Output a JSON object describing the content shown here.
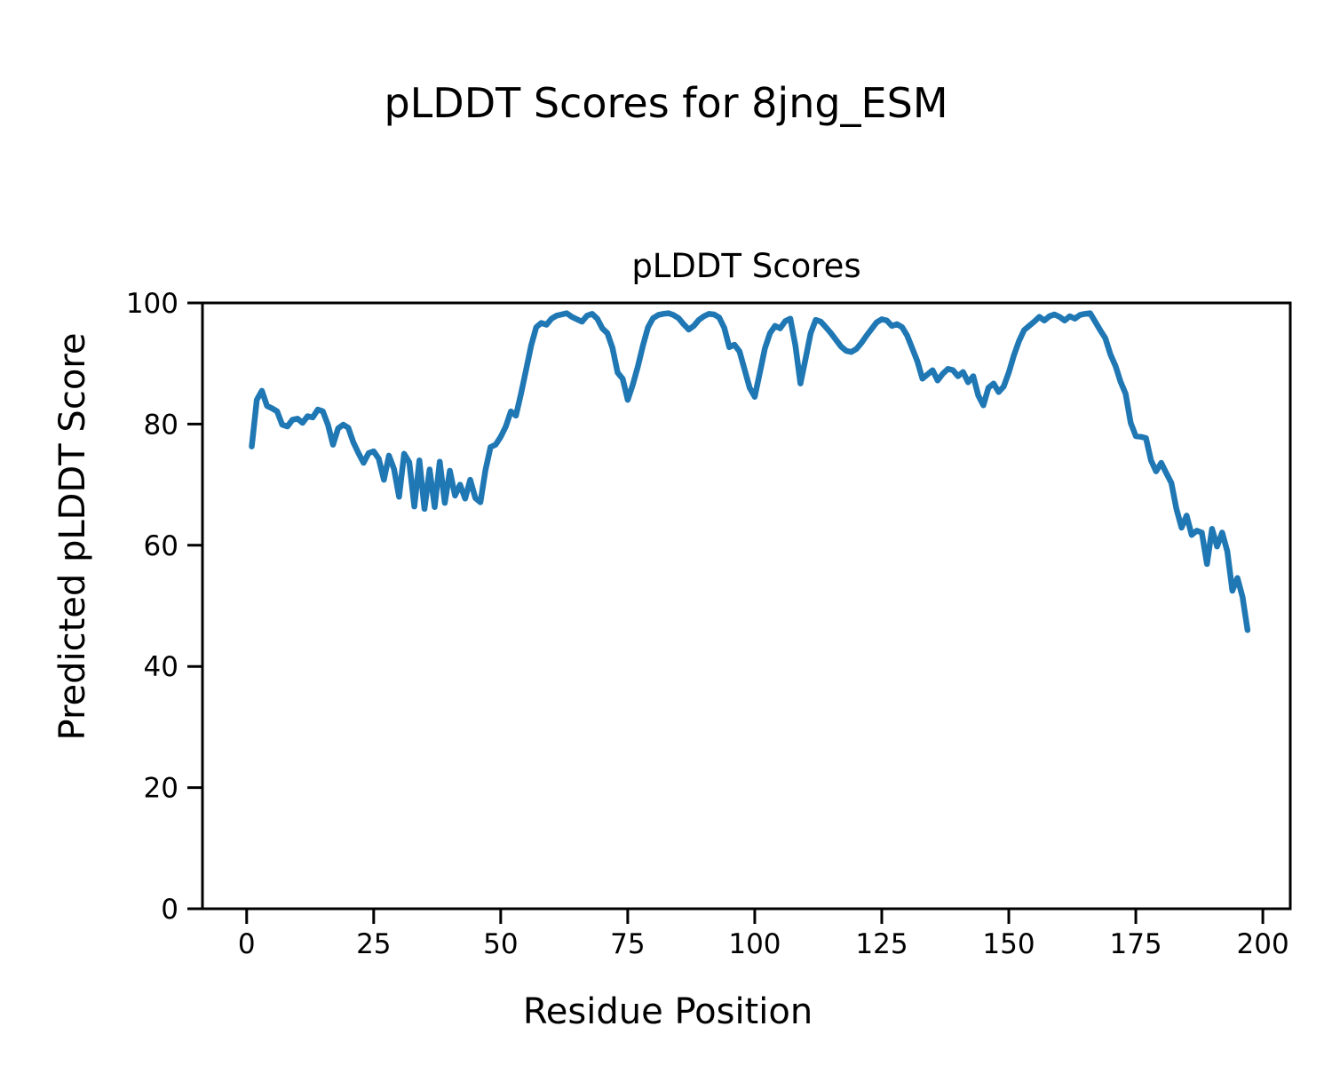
{
  "figure": {
    "suptitle": "pLDDT Scores for 8jng_ESM"
  },
  "chart_data": {
    "type": "line",
    "title": "pLDDT Scores",
    "xlabel": "Residue Position",
    "ylabel": "Predicted pLDDT Score",
    "legend": "none",
    "grid": false,
    "line_color": "#1f77b4",
    "x_start": 1,
    "x_ticks": [
      0,
      25,
      50,
      75,
      100,
      125,
      150,
      175,
      200
    ],
    "y_ticks": [
      0,
      20,
      40,
      60,
      80,
      100
    ],
    "xlim": [
      -8.7,
      205.4
    ],
    "ylim": [
      0,
      100
    ],
    "values": [
      76.3,
      84.0,
      85.5,
      83.0,
      82.6,
      82.1,
      79.9,
      79.6,
      80.7,
      80.9,
      80.2,
      81.3,
      81.1,
      82.4,
      82.1,
      79.9,
      76.6,
      79.3,
      79.9,
      79.4,
      77.0,
      75.2,
      73.6,
      75.2,
      75.5,
      74.3,
      70.8,
      74.8,
      72.6,
      68.0,
      75.1,
      73.7,
      66.4,
      74.0,
      66.0,
      72.5,
      66.3,
      73.8,
      67.0,
      72.3,
      68.2,
      70.0,
      67.7,
      70.8,
      67.8,
      67.1,
      72.4,
      76.2,
      76.6,
      77.9,
      79.6,
      82.1,
      81.4,
      85.0,
      89.0,
      93.0,
      96.0,
      96.7,
      96.4,
      97.4,
      97.9,
      98.1,
      98.3,
      97.7,
      97.3,
      96.9,
      97.9,
      98.2,
      97.4,
      95.8,
      95.0,
      92.6,
      88.5,
      87.5,
      84.0,
      86.5,
      89.5,
      93.0,
      96.0,
      97.5,
      98.0,
      98.2,
      98.3,
      98.0,
      97.5,
      96.5,
      95.6,
      96.2,
      97.2,
      97.8,
      98.2,
      98.1,
      97.6,
      95.9,
      92.7,
      93.1,
      92.0,
      89.0,
      86.0,
      84.5,
      88.5,
      92.5,
      95.0,
      96.2,
      95.8,
      97.0,
      97.4,
      93.0,
      86.7,
      90.8,
      95.0,
      97.2,
      96.9,
      96.0,
      95.0,
      93.9,
      92.8,
      92.1,
      91.9,
      92.4,
      93.4,
      94.6,
      95.7,
      96.8,
      97.3,
      97.1,
      96.2,
      96.5,
      96.0,
      94.6,
      92.5,
      90.4,
      87.5,
      88.2,
      88.9,
      87.2,
      88.3,
      89.1,
      88.9,
      87.9,
      88.6,
      86.9,
      87.9,
      84.7,
      83.1,
      86.0,
      86.7,
      85.3,
      86.2,
      88.5,
      91.3,
      93.7,
      95.5,
      96.2,
      96.9,
      97.7,
      97.1,
      97.8,
      98.1,
      97.7,
      97.1,
      97.8,
      97.4,
      98.0,
      98.2,
      98.3,
      96.9,
      95.5,
      94.2,
      91.5,
      89.6,
      87.0,
      85.0,
      80.2,
      78.0,
      77.9,
      77.7,
      74.0,
      72.2,
      73.6,
      71.9,
      70.3,
      66.0,
      62.9,
      64.9,
      61.7,
      62.4,
      62.1,
      56.9,
      62.7,
      59.8,
      62.1,
      59.0,
      52.5,
      54.6,
      51.5,
      46.0
    ]
  }
}
